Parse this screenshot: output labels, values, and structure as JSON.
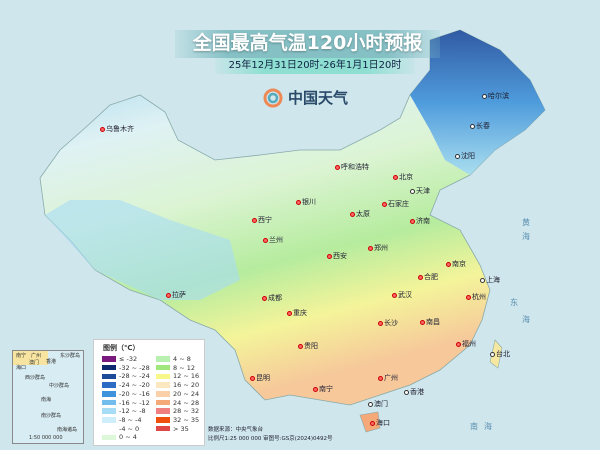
{
  "header": {
    "title": "全国最高气温120小时预报",
    "time_range": "25年12月31日20时-26年1月1日20时"
  },
  "logo": {
    "text": "中国天气"
  },
  "cities": [
    "哈尔滨",
    "长春",
    "沈阳",
    "乌鲁木齐",
    "呼和浩特",
    "北京",
    "天津",
    "石家庄",
    "太原",
    "银川",
    "济南",
    "西宁",
    "兰州",
    "郑州",
    "西安",
    "南京",
    "上海",
    "合肥",
    "拉萨",
    "成都",
    "武汉",
    "杭州",
    "重庆",
    "长沙",
    "南昌",
    "贵阳",
    "福州",
    "台北",
    "昆明",
    "南宁",
    "广州",
    "香港",
    "澳门",
    "海口"
  ],
  "seas": [
    "黄",
    "海",
    "东",
    "海",
    "南",
    "海"
  ],
  "legend": {
    "title": "图例（℃）",
    "items": [
      {
        "label": "≤ -32",
        "color": "#7a1a7e"
      },
      {
        "label": "-32 ~ -28",
        "color": "#0d2a6e"
      },
      {
        "label": "-28 ~ -24",
        "color": "#1e4a9a"
      },
      {
        "label": "-24 ~ -20",
        "color": "#2c6cc4"
      },
      {
        "label": "-20 ~ -16",
        "color": "#3f92dc"
      },
      {
        "label": "-16 ~ -12",
        "color": "#72bdec"
      },
      {
        "label": "-12 ~ -8",
        "color": "#a6dcf5"
      },
      {
        "label": "-8 ~ -4",
        "color": "#cdeefa"
      },
      {
        "label": "-4 ~ 0",
        "color": "#ffffff"
      },
      {
        "label": "0 ~ 4",
        "color": "#dcf8d8"
      },
      {
        "label": "4 ~ 8",
        "color": "#b8f0b0"
      },
      {
        "label": "8 ~ 12",
        "color": "#a0e87e"
      },
      {
        "label": "12 ~ 16",
        "color": "#f8f888"
      },
      {
        "label": "16 ~ 20",
        "color": "#fbe8c0"
      },
      {
        "label": "20 ~ 24",
        "color": "#fbd0a8"
      },
      {
        "label": "24 ~ 28",
        "color": "#f5a878"
      },
      {
        "label": "28 ~ 32",
        "color": "#f08080"
      },
      {
        "label": "32 ~ 35",
        "color": "#ef5010"
      },
      {
        "label": "> 35",
        "color": "#e04848"
      }
    ]
  },
  "footer": {
    "source": "数据来源：中央气象台",
    "scale": "比例尺1:25 000 000  审图号:GS京(2024)0492号"
  },
  "inset": {
    "labels": [
      "南宁",
      "广州",
      "香港",
      "海口",
      "澳门",
      "东沙群岛",
      "西沙群岛",
      "中沙群岛",
      "南海",
      "南沙群岛",
      "南海诸岛"
    ],
    "scale": "1:50 000 000"
  }
}
